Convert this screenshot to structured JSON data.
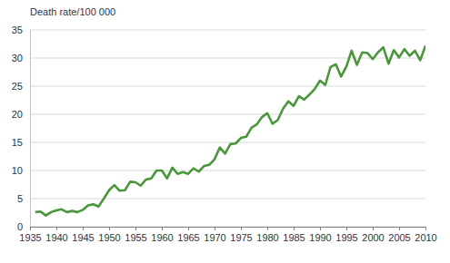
{
  "chart_data": {
    "type": "line",
    "y_label": "Death rate/100 000",
    "x": [
      1936,
      1937,
      1938,
      1939,
      1940,
      1941,
      1942,
      1943,
      1944,
      1945,
      1946,
      1947,
      1948,
      1949,
      1950,
      1951,
      1952,
      1953,
      1954,
      1955,
      1956,
      1957,
      1958,
      1959,
      1960,
      1961,
      1962,
      1963,
      1964,
      1965,
      1966,
      1967,
      1968,
      1969,
      1970,
      1971,
      1972,
      1973,
      1974,
      1975,
      1976,
      1977,
      1978,
      1979,
      1980,
      1981,
      1982,
      1983,
      1984,
      1985,
      1986,
      1987,
      1988,
      1989,
      1990,
      1991,
      1992,
      1993,
      1994,
      1995,
      1996,
      1997,
      1998,
      1999,
      2000,
      2001,
      2002,
      2003,
      2004,
      2005,
      2006,
      2007,
      2008,
      2009,
      2010
    ],
    "values": [
      2.6,
      2.7,
      2.0,
      2.6,
      2.9,
      3.1,
      2.6,
      2.8,
      2.6,
      3.0,
      3.8,
      4.0,
      3.6,
      5.0,
      6.5,
      7.4,
      6.4,
      6.5,
      8.0,
      7.9,
      7.3,
      8.4,
      8.6,
      10.0,
      10.0,
      8.6,
      10.5,
      9.4,
      9.7,
      9.4,
      10.4,
      9.8,
      10.8,
      11.0,
      12.0,
      14.1,
      13.0,
      14.7,
      14.8,
      15.8,
      16.0,
      17.6,
      18.2,
      19.5,
      20.2,
      18.3,
      19.0,
      21.0,
      22.3,
      21.5,
      23.2,
      22.6,
      23.5,
      24.5,
      26.0,
      25.2,
      28.4,
      28.9,
      26.7,
      28.5,
      31.3,
      28.8,
      31.0,
      30.9,
      29.8,
      31.0,
      31.9,
      29.0,
      31.4,
      30.1,
      31.6,
      30.4,
      31.3,
      29.6,
      32.2
    ],
    "color": "#4a963a",
    "xlim": [
      1935,
      2010
    ],
    "xticks": [
      1935,
      1940,
      1945,
      1950,
      1955,
      1960,
      1965,
      1970,
      1975,
      1980,
      1985,
      1990,
      1995,
      2000,
      2005,
      2010
    ],
    "ylim": [
      0,
      35
    ],
    "yticks": [
      0,
      5,
      10,
      15,
      20,
      25,
      30,
      35
    ],
    "grid": true
  }
}
